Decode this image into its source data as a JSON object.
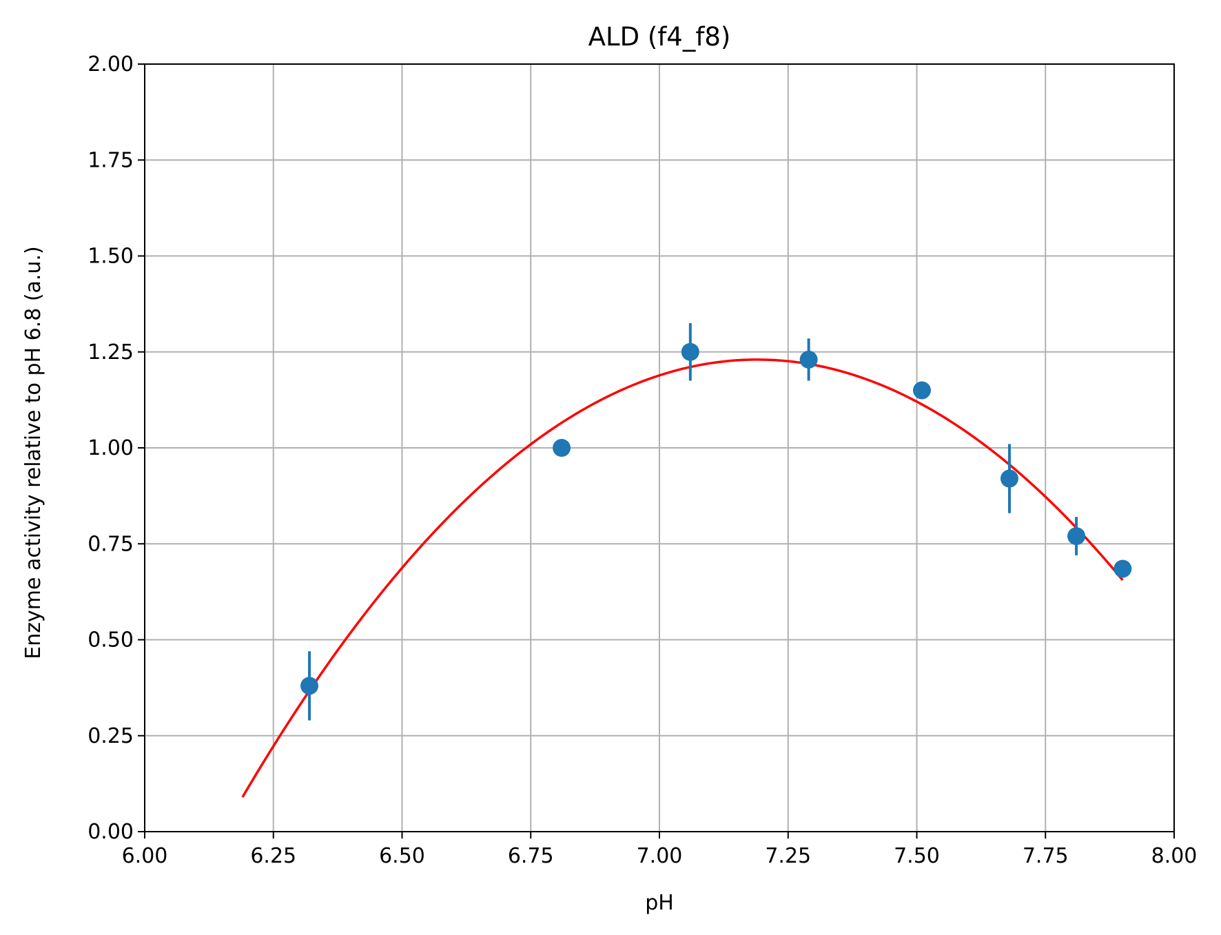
{
  "chart_data": {
    "type": "scatter",
    "title": "ALD (f4_f8)",
    "xlabel": "pH",
    "ylabel": "Enzyme activity relative to pH 6.8 (a.u.)",
    "xlim": [
      6.0,
      8.0
    ],
    "ylim": [
      0.0,
      2.0
    ],
    "x_ticks": [
      "6.00",
      "6.25",
      "6.50",
      "6.75",
      "7.00",
      "7.25",
      "7.50",
      "7.75",
      "8.00"
    ],
    "y_ticks": [
      "0.00",
      "0.25",
      "0.50",
      "0.75",
      "1.00",
      "1.25",
      "1.50",
      "1.75",
      "2.00"
    ],
    "grid": true,
    "series": [
      {
        "kind": "errorbar-points",
        "color": "#1f77b4",
        "points": [
          {
            "x": 6.32,
            "y": 0.38,
            "err": 0.09
          },
          {
            "x": 6.81,
            "y": 1.0,
            "err": 0.0
          },
          {
            "x": 7.06,
            "y": 1.25,
            "err": 0.075
          },
          {
            "x": 7.29,
            "y": 1.23,
            "err": 0.055
          },
          {
            "x": 7.51,
            "y": 1.15,
            "err": 0.0
          },
          {
            "x": 7.68,
            "y": 0.92,
            "err": 0.09
          },
          {
            "x": 7.81,
            "y": 0.77,
            "err": 0.05
          },
          {
            "x": 7.9,
            "y": 0.685,
            "err": 0.0
          }
        ]
      },
      {
        "kind": "fit-curve",
        "color": "#ff0000",
        "x_range": [
          6.19,
          7.9
        ],
        "model": "quadratic",
        "vertex_x": 7.19,
        "vertex_y": 1.23,
        "a": -1.14
      }
    ]
  }
}
